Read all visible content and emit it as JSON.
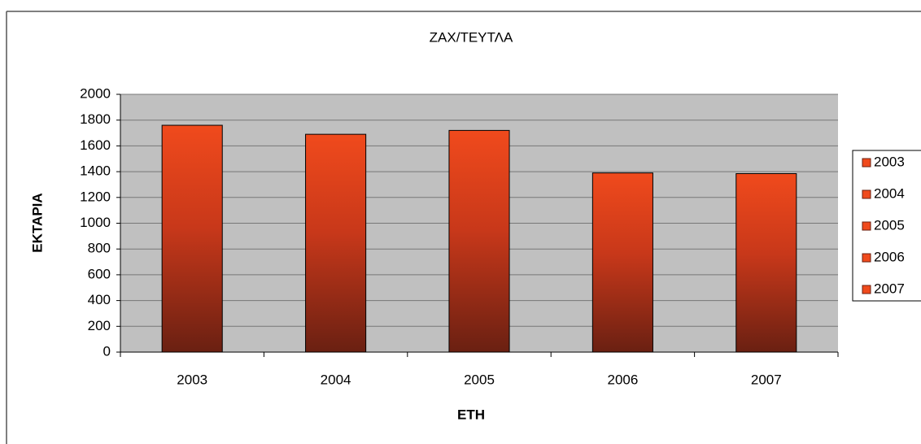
{
  "chart_data": {
    "type": "bar",
    "title": "ΖΑΧ/ΤΕΥΤΛΑ",
    "x_label": "ΕΤΗ",
    "y_label": "ΕΚΤΑΡΙΑ",
    "categories": [
      "2003",
      "2004",
      "2005",
      "2006",
      "2007"
    ],
    "values": [
      1760,
      1690,
      1720,
      1390,
      1385
    ],
    "color": "#f04a1c",
    "ylim": [
      0,
      2000
    ],
    "yticks": [
      0,
      200,
      400,
      600,
      800,
      1000,
      1200,
      1400,
      1600,
      1800,
      2000
    ],
    "grid": true,
    "legend": "right"
  }
}
